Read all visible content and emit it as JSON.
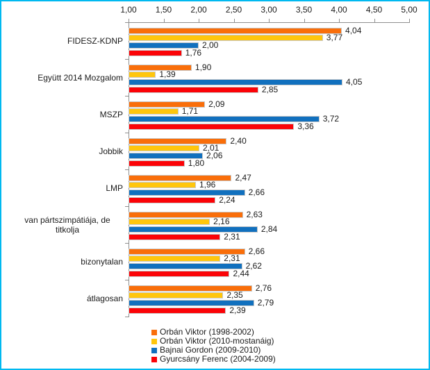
{
  "window": {
    "background_color": "#ffffff",
    "border_color": "#00b9f0"
  },
  "chart_data": {
    "type": "bar",
    "orientation": "horizontal",
    "title": "",
    "categories": [
      "FIDESZ-KDNP",
      "Együtt 2014 Mozgalom",
      "MSZP",
      "Jobbik",
      "LMP",
      "van pártszimpátiája, de titkolja",
      "bizonytalan",
      "átlagosan"
    ],
    "series": [
      {
        "name": "Orbán Viktor (1998-2002)",
        "color": "#f96e0a",
        "values": [
          4.04,
          1.9,
          2.09,
          2.4,
          2.47,
          2.63,
          2.66,
          2.76
        ]
      },
      {
        "name": "Orbán Viktor (2010-mostanáig)",
        "color": "#ffc60d",
        "values": [
          3.77,
          1.39,
          1.71,
          2.01,
          1.96,
          2.16,
          2.31,
          2.35
        ]
      },
      {
        "name": "Bajnai Gordon (2009-2010)",
        "color": "#1170be",
        "values": [
          2.0,
          4.05,
          3.72,
          2.06,
          2.66,
          2.84,
          2.62,
          2.79
        ]
      },
      {
        "name": "Gyurcsány Ferenc (2004-2009)",
        "color": "#fb0307",
        "values": [
          1.76,
          2.85,
          3.36,
          1.8,
          2.24,
          2.31,
          2.44,
          2.39
        ]
      }
    ],
    "x_axis": {
      "position": "top",
      "min": 1.0,
      "max": 5.0,
      "step": 0.5,
      "tick_labels": [
        "1,00",
        "1,50",
        "2,00",
        "2,50",
        "3,00",
        "3,50",
        "4,00",
        "4,50",
        "5,00"
      ]
    },
    "value_labels": "outside-end, comma decimal format (e.g. 4,04)",
    "legend_position": "bottom",
    "grid": false,
    "bar_border_color": "#c9c9c9",
    "axis_color": "#8e8e8e"
  }
}
